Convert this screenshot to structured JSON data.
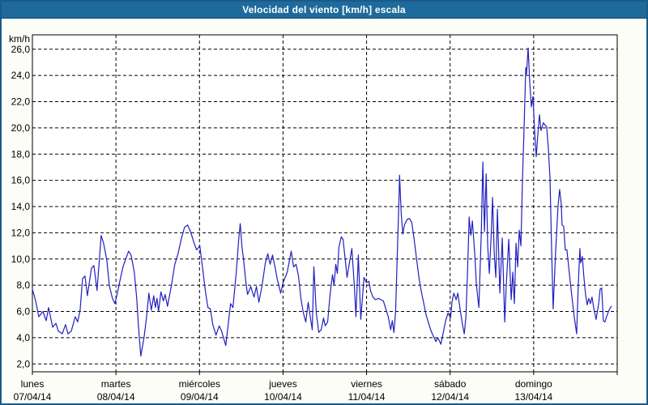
{
  "window": {
    "title": "Velocidad del viento [km/h] escala"
  },
  "colors": {
    "titlebar_bg": "#1e6b9b",
    "window_border": "#1a5a88",
    "content_bg": "#fbfdf6",
    "plot_bg": "#ffffff",
    "grid": "#000000",
    "line": "#2020c0",
    "text": "#000000"
  },
  "chart_data": {
    "type": "line",
    "title": "Velocidad del viento [km/h] escala",
    "ylabel": "km/h",
    "series_name": "Velocidad del viento",
    "ylim": [
      1.4,
      27.1
    ],
    "xlim_days": [
      0,
      7
    ],
    "grid": "dashed",
    "legend": "none",
    "line_color": "#2020c0",
    "y_ticks": [
      {
        "value": 2,
        "label": "2,0"
      },
      {
        "value": 4,
        "label": "4,0"
      },
      {
        "value": 6,
        "label": "6,0"
      },
      {
        "value": 8,
        "label": "8,0"
      },
      {
        "value": 10,
        "label": "10,0"
      },
      {
        "value": 12,
        "label": "12,0"
      },
      {
        "value": 14,
        "label": "14,0"
      },
      {
        "value": 16,
        "label": "16,0"
      },
      {
        "value": 18,
        "label": "18,0"
      },
      {
        "value": 20,
        "label": "20,0"
      },
      {
        "value": 22,
        "label": "22,0"
      },
      {
        "value": 24,
        "label": "24,0"
      },
      {
        "value": 26,
        "label": "26,0"
      }
    ],
    "x_days": [
      {
        "name": "lunes",
        "date": "07/04/14"
      },
      {
        "name": "martes",
        "date": "08/04/14"
      },
      {
        "name": "miércoles",
        "date": "09/04/14"
      },
      {
        "name": "jueves",
        "date": "10/04/14"
      },
      {
        "name": "viernes",
        "date": "11/04/14"
      },
      {
        "name": "sábado",
        "date": "12/04/14"
      },
      {
        "name": "domingo",
        "date": "13/04/14"
      }
    ],
    "points": [
      [
        0,
        7.7
      ],
      [
        0.039,
        6.8
      ],
      [
        0.077,
        5.6
      ],
      [
        0.126,
        6.0
      ],
      [
        0.165,
        5.3
      ],
      [
        0.194,
        6.3
      ],
      [
        0.242,
        4.8
      ],
      [
        0.281,
        5.1
      ],
      [
        0.31,
        4.5
      ],
      [
        0.358,
        4.3
      ],
      [
        0.397,
        5.0
      ],
      [
        0.426,
        4.3
      ],
      [
        0.465,
        4.5
      ],
      [
        0.513,
        5.6
      ],
      [
        0.542,
        5.2
      ],
      [
        0.571,
        6.1
      ],
      [
        0.6,
        8.5
      ],
      [
        0.629,
        8.7
      ],
      [
        0.658,
        7.2
      ],
      [
        0.707,
        9.3
      ],
      [
        0.736,
        9.5
      ],
      [
        0.774,
        7.6
      ],
      [
        0.823,
        11.8
      ],
      [
        0.852,
        11.2
      ],
      [
        0.891,
        9.9
      ],
      [
        0.92,
        8.0
      ],
      [
        0.958,
        7.0
      ],
      [
        0.987,
        6.6
      ],
      [
        1.017,
        7.4
      ],
      [
        1.046,
        8.3
      ],
      [
        1.084,
        9.4
      ],
      [
        1.123,
        10.1
      ],
      [
        1.152,
        10.6
      ],
      [
        1.181,
        10.3
      ],
      [
        1.22,
        9.0
      ],
      [
        1.249,
        7.0
      ],
      [
        1.268,
        5.0
      ],
      [
        1.297,
        2.6
      ],
      [
        1.336,
        4.0
      ],
      [
        1.365,
        5.5
      ],
      [
        1.394,
        7.4
      ],
      [
        1.423,
        6.1
      ],
      [
        1.452,
        7.2
      ],
      [
        1.472,
        6.3
      ],
      [
        1.491,
        7.0
      ],
      [
        1.51,
        6.0
      ],
      [
        1.539,
        7.5
      ],
      [
        1.568,
        6.8
      ],
      [
        1.588,
        7.3
      ],
      [
        1.617,
        6.4
      ],
      [
        1.665,
        8.0
      ],
      [
        1.704,
        9.6
      ],
      [
        1.743,
        10.4
      ],
      [
        1.781,
        11.5
      ],
      [
        1.82,
        12.4
      ],
      [
        1.859,
        12.6
      ],
      [
        1.897,
        12.0
      ],
      [
        1.936,
        11.2
      ],
      [
        1.965,
        10.7
      ],
      [
        2.004,
        11.0
      ],
      [
        2.033,
        9.5
      ],
      [
        2.072,
        7.5
      ],
      [
        2.101,
        6.3
      ],
      [
        2.13,
        6.2
      ],
      [
        2.159,
        5.0
      ],
      [
        2.198,
        4.2
      ],
      [
        2.236,
        4.9
      ],
      [
        2.265,
        4.5
      ],
      [
        2.314,
        3.4
      ],
      [
        2.343,
        5.0
      ],
      [
        2.372,
        6.6
      ],
      [
        2.401,
        6.3
      ],
      [
        2.44,
        9.0
      ],
      [
        2.469,
        11.5
      ],
      [
        2.488,
        12.7
      ],
      [
        2.507,
        11.0
      ],
      [
        2.527,
        10.0
      ],
      [
        2.556,
        8.2
      ],
      [
        2.575,
        7.3
      ],
      [
        2.614,
        7.9
      ],
      [
        2.653,
        7.1
      ],
      [
        2.682,
        7.9
      ],
      [
        2.711,
        6.7
      ],
      [
        2.75,
        8.0
      ],
      [
        2.788,
        9.7
      ],
      [
        2.817,
        10.4
      ],
      [
        2.846,
        9.6
      ],
      [
        2.875,
        10.3
      ],
      [
        2.904,
        9.4
      ],
      [
        2.933,
        8.4
      ],
      [
        2.972,
        7.4
      ],
      [
        3.001,
        8.2
      ],
      [
        3.05,
        9.0
      ],
      [
        3.098,
        10.6
      ],
      [
        3.127,
        9.4
      ],
      [
        3.156,
        9.6
      ],
      [
        3.185,
        8.7
      ],
      [
        3.214,
        7.0
      ],
      [
        3.243,
        5.9
      ],
      [
        3.272,
        5.2
      ],
      [
        3.301,
        6.7
      ],
      [
        3.33,
        5.4
      ],
      [
        3.35,
        4.6
      ],
      [
        3.369,
        9.4
      ],
      [
        3.398,
        5.9
      ],
      [
        3.427,
        4.4
      ],
      [
        3.456,
        4.6
      ],
      [
        3.485,
        5.5
      ],
      [
        3.505,
        4.9
      ],
      [
        3.534,
        5.2
      ],
      [
        3.563,
        7.3
      ],
      [
        3.592,
        8.8
      ],
      [
        3.611,
        8.0
      ],
      [
        3.631,
        9.6
      ],
      [
        3.65,
        8.9
      ],
      [
        3.669,
        10.9
      ],
      [
        3.698,
        11.7
      ],
      [
        3.718,
        11.5
      ],
      [
        3.747,
        9.8
      ],
      [
        3.766,
        8.6
      ],
      [
        3.795,
        9.7
      ],
      [
        3.824,
        10.8
      ],
      [
        3.853,
        8.0
      ],
      [
        3.872,
        5.6
      ],
      [
        3.901,
        10.3
      ],
      [
        3.93,
        5.4
      ],
      [
        3.969,
        8.6
      ],
      [
        3.998,
        8.2
      ],
      [
        4.027,
        8.3
      ],
      [
        4.047,
        7.6
      ],
      [
        4.076,
        7.1
      ],
      [
        4.105,
        6.9
      ],
      [
        4.143,
        7.0
      ],
      [
        4.172,
        6.9
      ],
      [
        4.201,
        6.8
      ],
      [
        4.23,
        6.2
      ],
      [
        4.259,
        5.6
      ],
      [
        4.288,
        4.6
      ],
      [
        4.308,
        5.3
      ],
      [
        4.327,
        4.4
      ],
      [
        4.347,
        6.0
      ],
      [
        4.366,
        10.0
      ],
      [
        4.385,
        14.0
      ],
      [
        4.395,
        16.4
      ],
      [
        4.414,
        13.5
      ],
      [
        4.434,
        11.9
      ],
      [
        4.453,
        12.6
      ],
      [
        4.482,
        13.0
      ],
      [
        4.511,
        13.1
      ],
      [
        4.54,
        12.8
      ],
      [
        4.569,
        11.5
      ],
      [
        4.598,
        10.0
      ],
      [
        4.627,
        8.6
      ],
      [
        4.656,
        7.5
      ],
      [
        4.685,
        6.6
      ],
      [
        4.714,
        5.7
      ],
      [
        4.743,
        5.1
      ],
      [
        4.772,
        4.5
      ],
      [
        4.801,
        4.1
      ],
      [
        4.83,
        3.7
      ],
      [
        4.85,
        4.0
      ],
      [
        4.869,
        3.8
      ],
      [
        4.889,
        3.5
      ],
      [
        4.918,
        4.4
      ],
      [
        4.947,
        5.3
      ],
      [
        4.976,
        5.9
      ],
      [
        5.005,
        5.5
      ],
      [
        5.024,
        6.8
      ],
      [
        5.044,
        7.4
      ],
      [
        5.073,
        6.9
      ],
      [
        5.092,
        7.4
      ],
      [
        5.121,
        6.1
      ],
      [
        5.15,
        4.9
      ],
      [
        5.17,
        4.3
      ],
      [
        5.189,
        5.6
      ],
      [
        5.208,
        9.0
      ],
      [
        5.228,
        13.2
      ],
      [
        5.247,
        11.8
      ],
      [
        5.266,
        12.9
      ],
      [
        5.295,
        10.4
      ],
      [
        5.315,
        8.0
      ],
      [
        5.344,
        6.3
      ],
      [
        5.373,
        12.0
      ],
      [
        5.392,
        17.4
      ],
      [
        5.411,
        12.1
      ],
      [
        5.431,
        16.5
      ],
      [
        5.45,
        11.0
      ],
      [
        5.469,
        8.9
      ],
      [
        5.489,
        11.5
      ],
      [
        5.508,
        14.7
      ],
      [
        5.527,
        10.5
      ],
      [
        5.547,
        8.6
      ],
      [
        5.566,
        13.8
      ],
      [
        5.595,
        7.4
      ],
      [
        5.624,
        11.6
      ],
      [
        5.653,
        5.2
      ],
      [
        5.673,
        8.1
      ],
      [
        5.702,
        11.5
      ],
      [
        5.731,
        6.9
      ],
      [
        5.75,
        9.0
      ],
      [
        5.769,
        6.6
      ],
      [
        5.789,
        11.2
      ],
      [
        5.808,
        9.4
      ],
      [
        5.827,
        12.2
      ],
      [
        5.847,
        11.0
      ],
      [
        5.866,
        16.0
      ],
      [
        5.885,
        20.0
      ],
      [
        5.905,
        24.6
      ],
      [
        5.914,
        24.1
      ],
      [
        5.934,
        26.1
      ],
      [
        5.953,
        23.5
      ],
      [
        5.972,
        21.6
      ],
      [
        5.992,
        22.4
      ],
      [
        6.011,
        19.8
      ],
      [
        6.03,
        17.8
      ],
      [
        6.05,
        19.5
      ],
      [
        6.069,
        21.0
      ],
      [
        6.088,
        19.8
      ],
      [
        6.117,
        20.4
      ],
      [
        6.137,
        20.2
      ],
      [
        6.156,
        20.1
      ],
      [
        6.175,
        18.5
      ],
      [
        6.195,
        16.2
      ],
      [
        6.214,
        11.0
      ],
      [
        6.233,
        6.2
      ],
      [
        6.262,
        10.5
      ],
      [
        6.291,
        14.0
      ],
      [
        6.311,
        15.3
      ],
      [
        6.33,
        14.2
      ],
      [
        6.34,
        12.6
      ],
      [
        6.359,
        12.5
      ],
      [
        6.379,
        10.7
      ],
      [
        6.398,
        10.7
      ],
      [
        6.427,
        8.9
      ],
      [
        6.456,
        7.2
      ],
      [
        6.485,
        5.6
      ],
      [
        6.514,
        4.3
      ],
      [
        6.534,
        8.0
      ],
      [
        6.553,
        10.8
      ],
      [
        6.563,
        9.7
      ],
      [
        6.582,
        10.2
      ],
      [
        6.602,
        8.6
      ],
      [
        6.621,
        7.3
      ],
      [
        6.64,
        6.5
      ],
      [
        6.66,
        7.0
      ],
      [
        6.679,
        6.6
      ],
      [
        6.698,
        7.1
      ],
      [
        6.718,
        6.3
      ],
      [
        6.747,
        5.4
      ],
      [
        6.776,
        6.5
      ],
      [
        6.795,
        7.7
      ],
      [
        6.814,
        7.8
      ],
      [
        6.834,
        5.3
      ],
      [
        6.853,
        5.2
      ],
      [
        6.872,
        5.6
      ],
      [
        6.901,
        6.1
      ],
      [
        6.93,
        6.4
      ]
    ]
  }
}
